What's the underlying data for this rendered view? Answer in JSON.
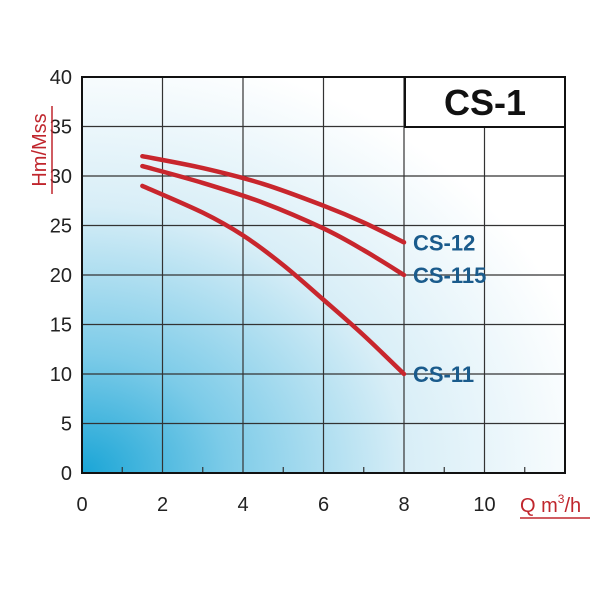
{
  "chart_data": {
    "type": "line",
    "title": "CS-1",
    "xlabel": "Q m",
    "xlabel_sup": "3",
    "xlabel_suffix": "/h",
    "ylabel": "Hm/Mss",
    "xlim": [
      0,
      12
    ],
    "ylim": [
      0,
      40
    ],
    "xticks": [
      0,
      2,
      4,
      6,
      8,
      10
    ],
    "yticks": [
      0,
      5,
      10,
      15,
      20,
      25,
      30,
      35,
      40
    ],
    "grid": true,
    "series": [
      {
        "name": "CS-12",
        "x": [
          1.5,
          3,
          4.5,
          6,
          7,
          8
        ],
        "y": [
          32,
          30.8,
          29.2,
          27,
          25.3,
          23.3
        ]
      },
      {
        "name": "CS-115",
        "x": [
          1.5,
          3,
          4.5,
          6,
          7,
          8
        ],
        "y": [
          31,
          29.3,
          27.3,
          24.7,
          22.5,
          20
        ]
      },
      {
        "name": "CS-11",
        "x": [
          1.5,
          3,
          4,
          5,
          6,
          7,
          8
        ],
        "y": [
          29,
          26.3,
          24,
          21,
          17.5,
          13.9,
          10
        ]
      }
    ],
    "colors": {
      "series_line": "#c8262d",
      "series_label": "#1a5b8c",
      "axis_label": "#c0262d",
      "grid": "#333333",
      "bg_light": "#ffffff",
      "bg_dark": "#1aa5d6"
    }
  }
}
